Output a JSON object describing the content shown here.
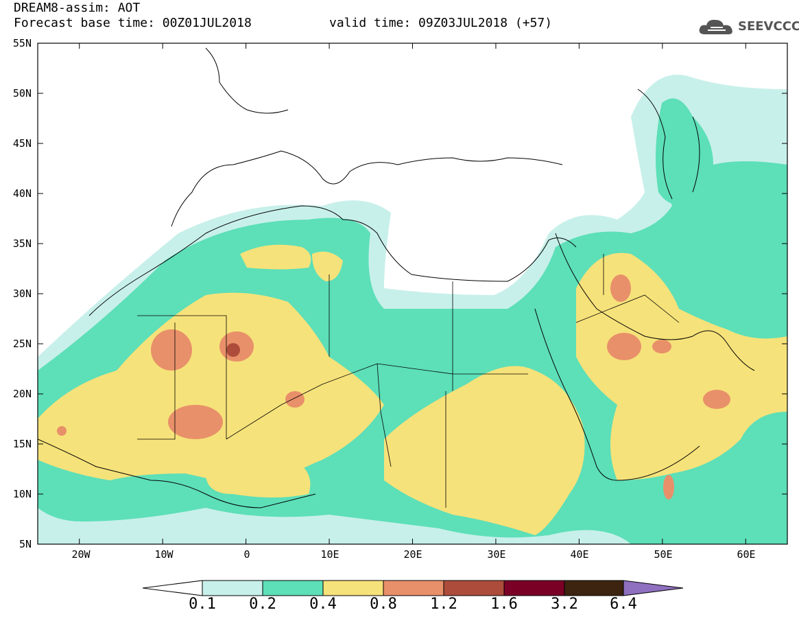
{
  "header": {
    "title": "DREAM8-assim: AOT",
    "base_time": "Forecast base time: 00Z01JUL2018",
    "valid_time": "valid time: 09Z03JUL2018 (+57)"
  },
  "logo": {
    "text": "SEEVCCC",
    "icon": "cloud-icon",
    "color": "#555555"
  },
  "axes": {
    "lat_labels": [
      "55N",
      "50N",
      "45N",
      "40N",
      "35N",
      "30N",
      "25N",
      "20N",
      "15N",
      "10N",
      "5N"
    ],
    "lon_labels": [
      "20W",
      "10W",
      "0",
      "10E",
      "20E",
      "30E",
      "40E",
      "50E",
      "60E"
    ]
  },
  "colorbar": {
    "labels": [
      "0.1",
      "0.2",
      "0.4",
      "0.8",
      "1.2",
      "1.6",
      "3.2",
      "6.4"
    ],
    "colors": [
      "#ffffff",
      "#c8f0ea",
      "#5ddfb8",
      "#f6e27a",
      "#e8906a",
      "#ae4c3b",
      "#7a0026",
      "#3c2410",
      "#8f6fbf"
    ]
  }
}
